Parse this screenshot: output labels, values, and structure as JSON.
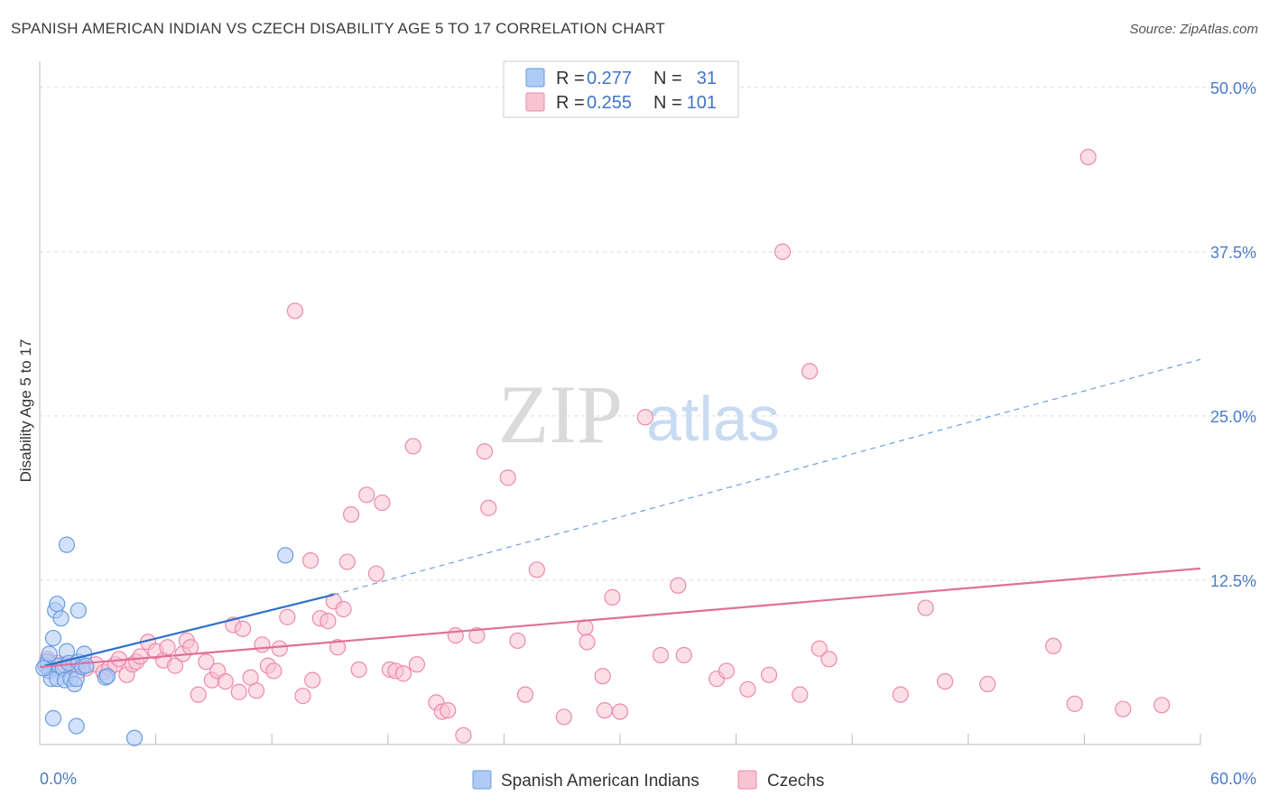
{
  "title": "SPANISH AMERICAN INDIAN VS CZECH DISABILITY AGE 5 TO 17 CORRELATION CHART",
  "source": "Source: ZipAtlas.com",
  "watermark": {
    "zip": "ZIP",
    "atlas": "atlas"
  },
  "legend": {
    "r_label": "R =",
    "n_label": "N =",
    "items": [
      {
        "r": "0.277",
        "n": "31",
        "color": "#aecbf5",
        "stroke": "#6a9be0"
      },
      {
        "r": "0.255",
        "n": "101",
        "color": "#f9c3d3",
        "stroke": "#ec8aa9"
      }
    ]
  },
  "chart_data": {
    "type": "scatter",
    "title": "SPANISH AMERICAN INDIAN VS CZECH DISABILITY AGE 5 TO 17 CORRELATION CHART",
    "xlabel": "",
    "ylabel": "Disability Age 5 to 17",
    "xlim": [
      0,
      60
    ],
    "ylim": [
      0,
      51.5
    ],
    "x_tick_labels": [
      "0.0%",
      "60.0%"
    ],
    "y_tick_labels": [
      "12.5%",
      "25.0%",
      "37.5%",
      "50.0%"
    ],
    "y_ticks": [
      12.5,
      25.0,
      37.5,
      50.0
    ],
    "series": [
      {
        "name": "Spanish American Indians",
        "color": "#6a9be0",
        "fill": "#aecbf5",
        "points": [
          [
            0.3,
            6.0
          ],
          [
            0.4,
            6.3
          ],
          [
            0.5,
            5.6
          ],
          [
            0.5,
            6.9
          ],
          [
            0.6,
            5.0
          ],
          [
            0.7,
            8.1
          ],
          [
            0.7,
            2.0
          ],
          [
            0.8,
            10.2
          ],
          [
            0.9,
            10.7
          ],
          [
            0.9,
            5.0
          ],
          [
            1.0,
            6.0
          ],
          [
            1.1,
            9.6
          ],
          [
            1.2,
            5.8
          ],
          [
            1.3,
            4.9
          ],
          [
            1.4,
            7.1
          ],
          [
            1.4,
            15.2
          ],
          [
            1.5,
            6.2
          ],
          [
            1.6,
            5.0
          ],
          [
            1.8,
            4.6
          ],
          [
            1.9,
            5.0
          ],
          [
            1.9,
            1.4
          ],
          [
            2.0,
            6.3
          ],
          [
            2.0,
            10.2
          ],
          [
            2.2,
            5.9
          ],
          [
            2.3,
            6.9
          ],
          [
            2.4,
            6.0
          ],
          [
            3.4,
            5.1
          ],
          [
            3.5,
            5.2
          ],
          [
            4.9,
            0.5
          ],
          [
            12.7,
            14.4
          ],
          [
            0.2,
            5.8
          ]
        ],
        "trend": {
          "x0": 0.3,
          "y0": 6.0,
          "x1": 15.2,
          "y1": 11.4,
          "dashed_to_x": 60,
          "dashed_to_y": 29.3
        }
      },
      {
        "name": "Czechs",
        "color": "#ec8aa9",
        "fill": "#f9c3d3",
        "points": [
          [
            0.4,
            6.5
          ],
          [
            0.6,
            5.8
          ],
          [
            0.9,
            6.2
          ],
          [
            1.1,
            5.7
          ],
          [
            1.3,
            6.1
          ],
          [
            1.6,
            6.0
          ],
          [
            2.0,
            5.6
          ],
          [
            2.4,
            5.8
          ],
          [
            2.9,
            6.1
          ],
          [
            3.3,
            5.5
          ],
          [
            3.6,
            5.8
          ],
          [
            3.9,
            6.1
          ],
          [
            4.1,
            6.5
          ],
          [
            4.5,
            5.3
          ],
          [
            4.8,
            6.1
          ],
          [
            5.0,
            6.3
          ],
          [
            5.2,
            6.7
          ],
          [
            5.6,
            7.8
          ],
          [
            6.0,
            7.1
          ],
          [
            6.4,
            6.4
          ],
          [
            6.6,
            7.4
          ],
          [
            7.0,
            6.0
          ],
          [
            7.4,
            6.9
          ],
          [
            7.6,
            7.9
          ],
          [
            7.8,
            7.4
          ],
          [
            8.2,
            3.8
          ],
          [
            8.6,
            6.3
          ],
          [
            8.9,
            4.9
          ],
          [
            9.2,
            5.6
          ],
          [
            9.6,
            4.8
          ],
          [
            10.0,
            9.1
          ],
          [
            10.3,
            4.0
          ],
          [
            10.9,
            5.1
          ],
          [
            11.2,
            4.1
          ],
          [
            11.5,
            7.6
          ],
          [
            11.8,
            6.0
          ],
          [
            12.1,
            5.6
          ],
          [
            12.4,
            7.3
          ],
          [
            12.8,
            9.7
          ],
          [
            13.2,
            33.0
          ],
          [
            13.6,
            3.7
          ],
          [
            14.0,
            14.0
          ],
          [
            14.1,
            4.9
          ],
          [
            14.5,
            9.6
          ],
          [
            14.9,
            9.4
          ],
          [
            15.2,
            10.9
          ],
          [
            15.4,
            7.4
          ],
          [
            15.7,
            10.3
          ],
          [
            15.9,
            13.9
          ],
          [
            16.1,
            17.5
          ],
          [
            16.5,
            5.7
          ],
          [
            16.9,
            19.0
          ],
          [
            17.4,
            13.0
          ],
          [
            17.7,
            18.4
          ],
          [
            18.1,
            5.7
          ],
          [
            18.4,
            5.6
          ],
          [
            18.8,
            5.4
          ],
          [
            19.3,
            22.7
          ],
          [
            19.5,
            6.1
          ],
          [
            20.5,
            3.2
          ],
          [
            20.8,
            2.5
          ],
          [
            21.1,
            2.6
          ],
          [
            21.5,
            8.3
          ],
          [
            21.9,
            0.7
          ],
          [
            22.6,
            8.3
          ],
          [
            23.0,
            22.3
          ],
          [
            23.2,
            18.0
          ],
          [
            24.2,
            20.3
          ],
          [
            24.7,
            7.9
          ],
          [
            25.1,
            3.8
          ],
          [
            25.7,
            13.3
          ],
          [
            27.1,
            2.1
          ],
          [
            28.2,
            8.9
          ],
          [
            28.3,
            7.8
          ],
          [
            29.1,
            5.2
          ],
          [
            29.2,
            2.6
          ],
          [
            29.6,
            11.2
          ],
          [
            30.0,
            2.5
          ],
          [
            31.3,
            24.9
          ],
          [
            32.1,
            6.8
          ],
          [
            33.0,
            12.1
          ],
          [
            33.3,
            6.8
          ],
          [
            35.0,
            5.0
          ],
          [
            35.5,
            5.6
          ],
          [
            36.6,
            4.2
          ],
          [
            37.7,
            5.3
          ],
          [
            38.4,
            37.5
          ],
          [
            39.3,
            3.8
          ],
          [
            39.8,
            28.4
          ],
          [
            40.3,
            7.3
          ],
          [
            40.8,
            6.5
          ],
          [
            44.5,
            3.8
          ],
          [
            45.8,
            10.4
          ],
          [
            46.8,
            4.8
          ],
          [
            49.0,
            4.6
          ],
          [
            52.4,
            7.5
          ],
          [
            53.5,
            3.1
          ],
          [
            54.2,
            44.7
          ],
          [
            56.0,
            2.7
          ],
          [
            58.0,
            3.0
          ],
          [
            10.5,
            8.8
          ]
        ],
        "trend": {
          "x0": 0,
          "y0": 5.9,
          "x1": 60,
          "y1": 13.4
        }
      }
    ]
  },
  "bottom_legend": [
    {
      "label": "Spanish American Indians",
      "color": "#aecbf5",
      "stroke": "#6a9be0"
    },
    {
      "label": "Czechs",
      "color": "#f9c3d3",
      "stroke": "#ec8aa9"
    }
  ]
}
